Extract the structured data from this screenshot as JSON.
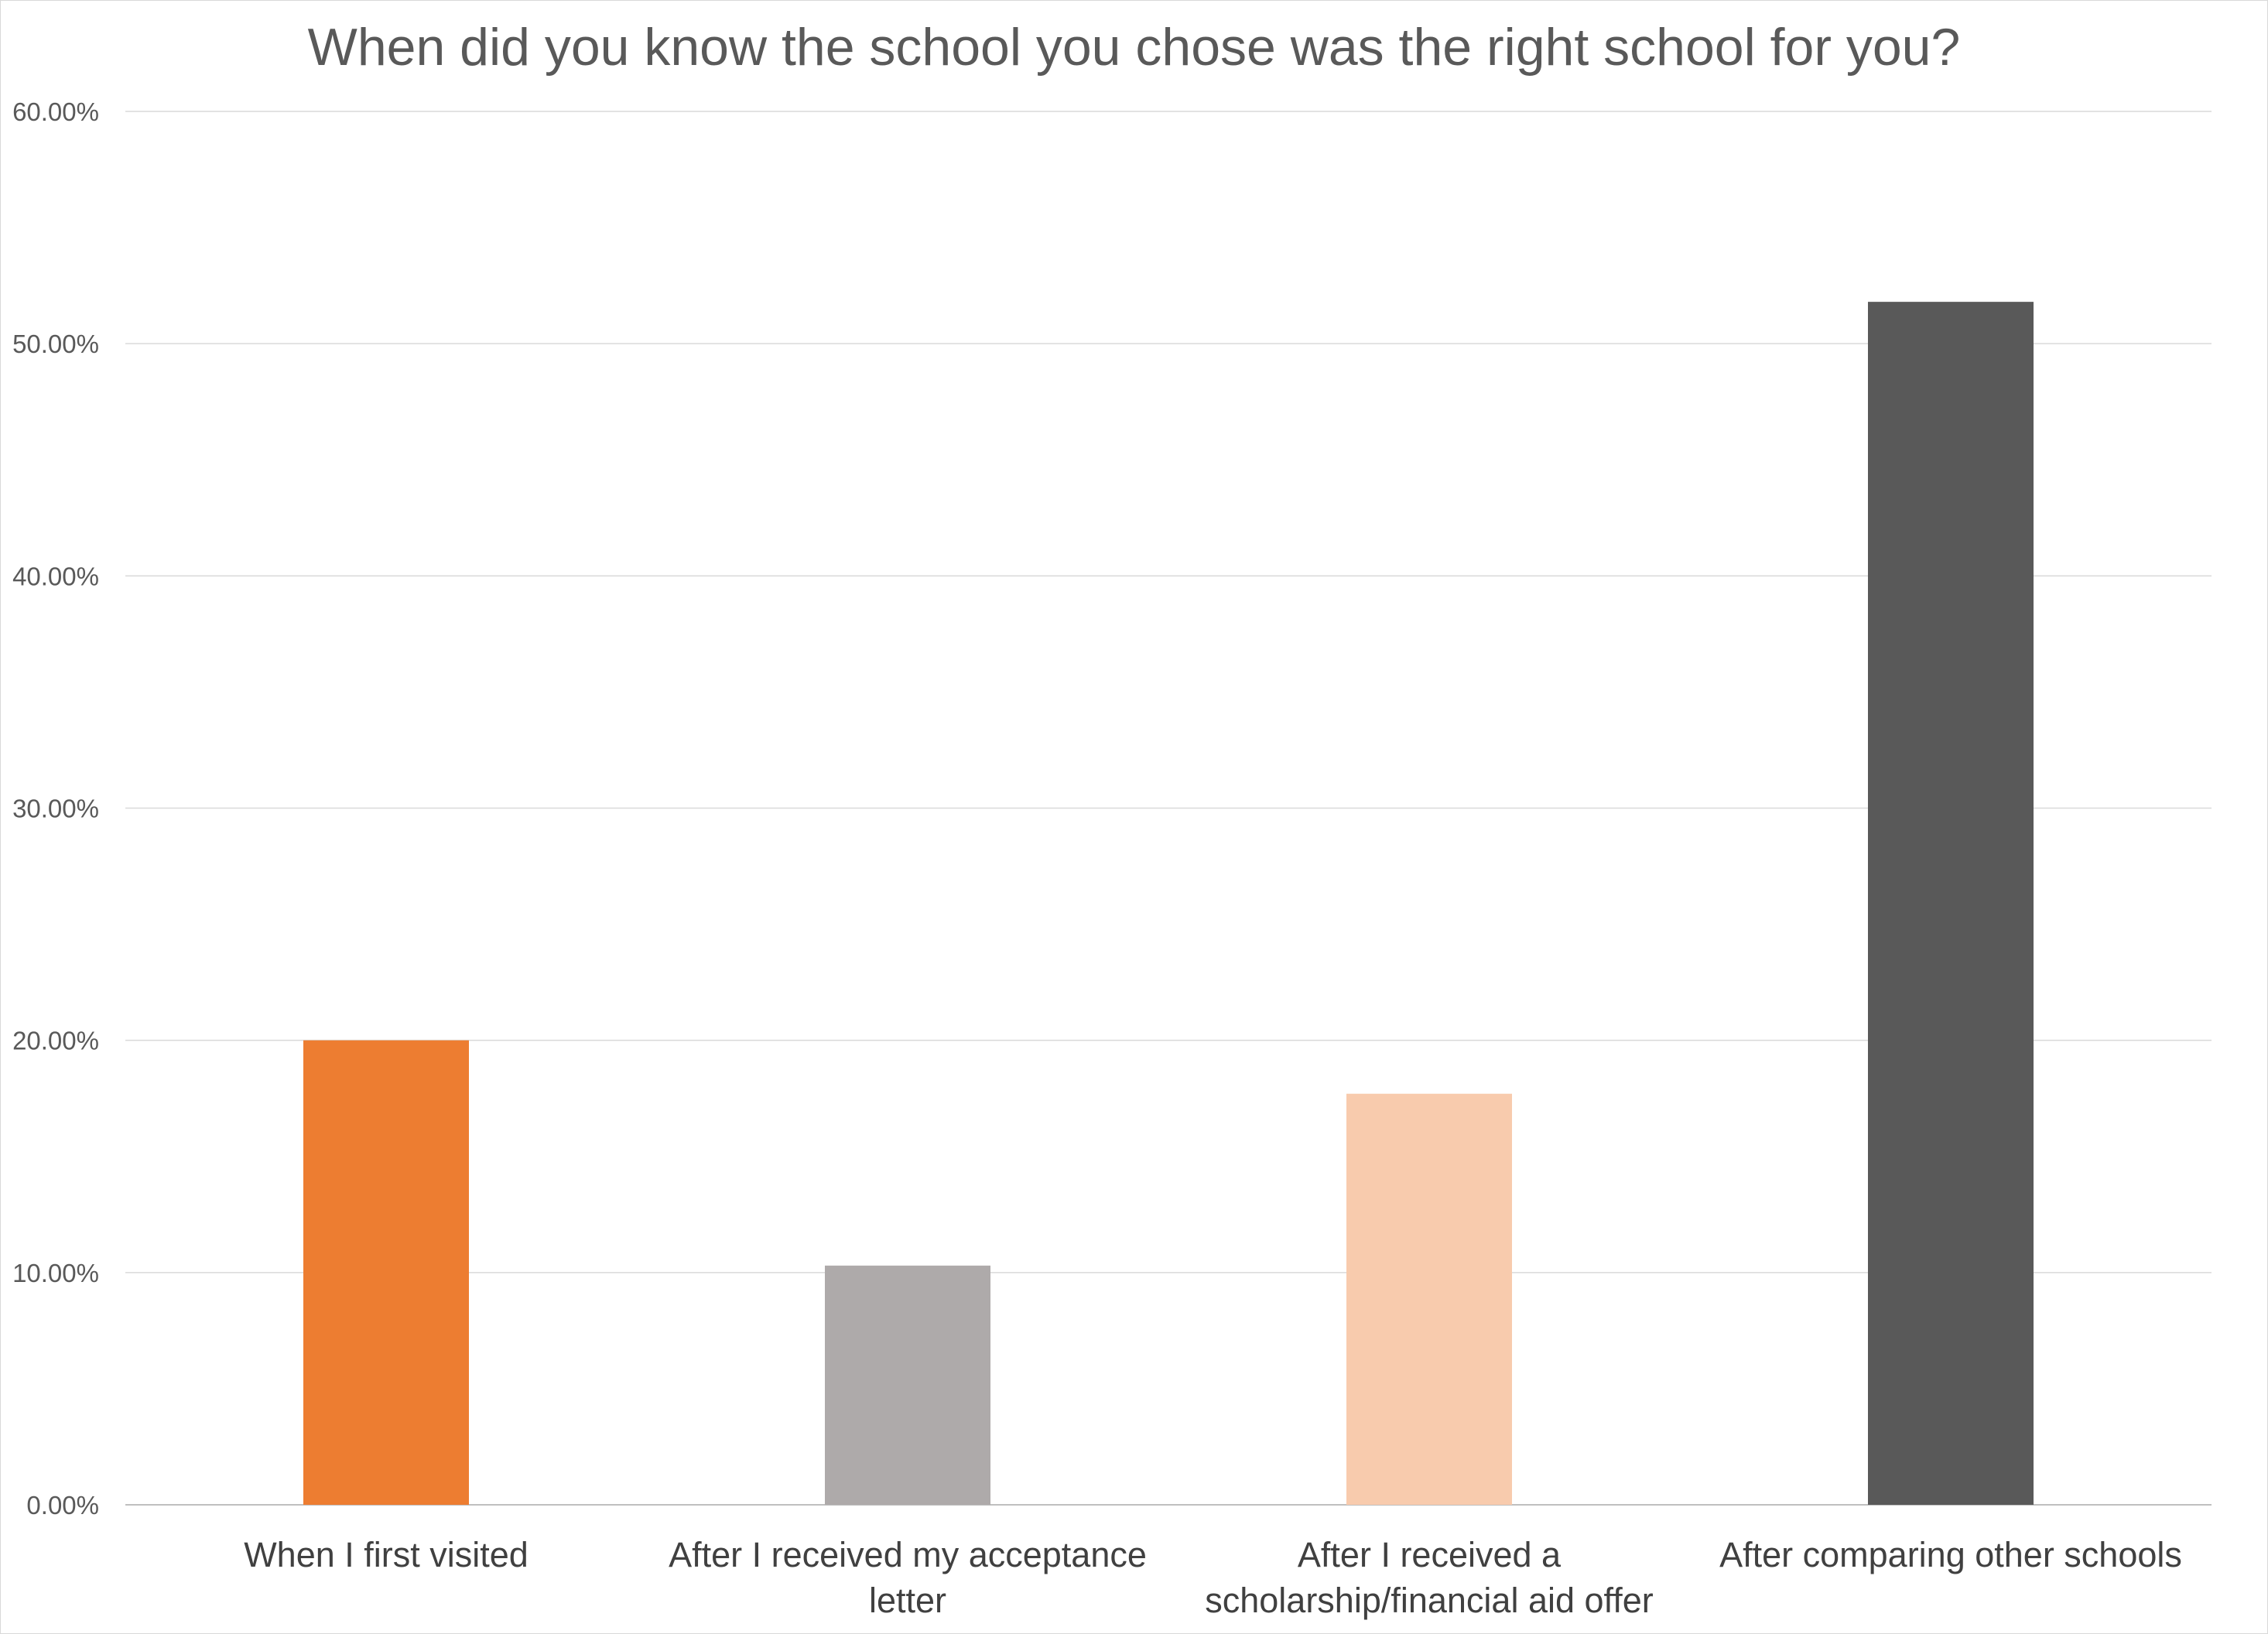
{
  "chart_data": {
    "type": "bar",
    "title": "When did you know the school you chose was the right school for you?",
    "xlabel": "",
    "ylabel": "",
    "ylim": [
      0,
      60
    ],
    "yticks": [
      "0.00%",
      "10.00%",
      "20.00%",
      "30.00%",
      "40.00%",
      "50.00%",
      "60.00%"
    ],
    "grid": true,
    "legend": "none",
    "categories": [
      [
        "When I first visited"
      ],
      [
        "After I received my acceptance",
        "letter"
      ],
      [
        "After I received a",
        "scholarship/financial aid offer"
      ],
      [
        "After comparing other schools"
      ]
    ],
    "values": [
      20.0,
      10.3,
      17.7,
      51.8
    ],
    "colors": [
      "#ed7d31",
      "#aeaaaa",
      "#f8cbad",
      "#595959"
    ]
  }
}
